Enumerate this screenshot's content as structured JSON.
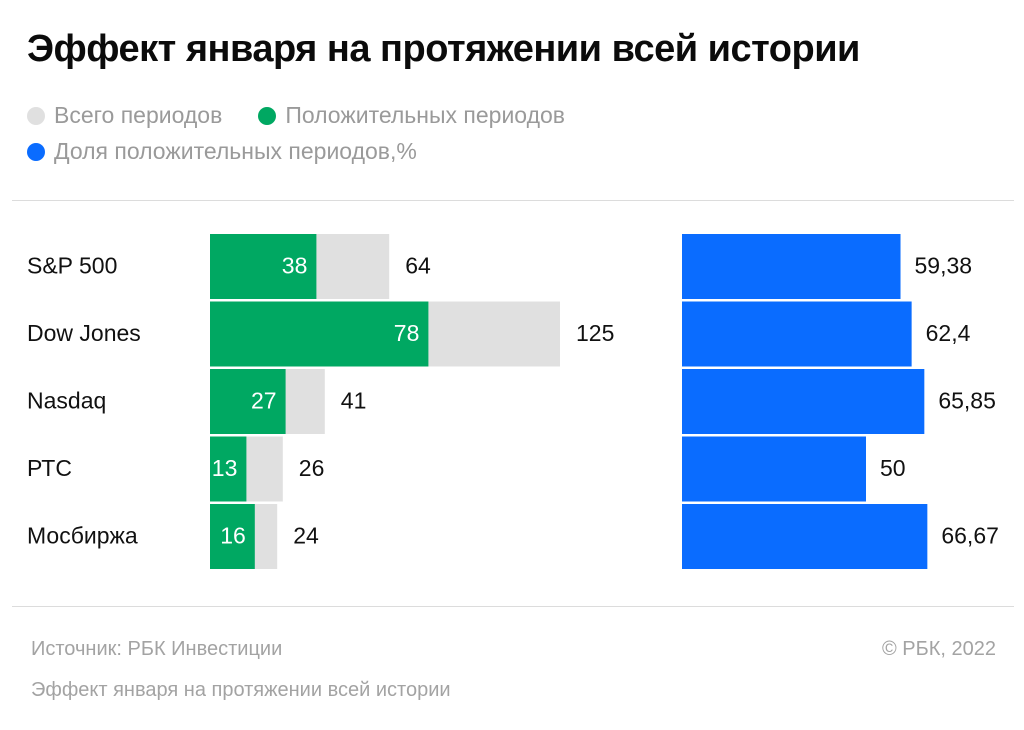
{
  "title": "Эффект января на протяжении всей истории",
  "legend": [
    {
      "label": "Всего периодов",
      "color": "#e0e0e0"
    },
    {
      "label": "Положительных периодов",
      "color": "#00a862"
    },
    {
      "label": "Доля положительных периодов,%",
      "color": "#0a6cff"
    }
  ],
  "chart_data": {
    "type": "bar",
    "orientation": "horizontal",
    "categories": [
      "S&P 500",
      "Dow Jones",
      "Nasdaq",
      "РТС",
      "Мосбиржа"
    ],
    "series": [
      {
        "name": "Всего периодов",
        "values": [
          64,
          125,
          41,
          26,
          24
        ],
        "labels": [
          "64",
          "125",
          "41",
          "26",
          "24"
        ],
        "color": "#e0e0e0"
      },
      {
        "name": "Положительных периодов",
        "values": [
          38,
          78,
          27,
          13,
          16
        ],
        "labels": [
          "38",
          "78",
          "27",
          "13",
          "16"
        ],
        "color": "#00a862"
      },
      {
        "name": "Доля положительных периодов,%",
        "values": [
          59.38,
          62.4,
          65.85,
          50,
          66.67
        ],
        "labels": [
          "59,38",
          "62,4",
          "65,85",
          "50",
          "66,67"
        ],
        "color": "#0a6cff"
      }
    ],
    "legend_position": "top-left",
    "grid": false
  },
  "footer": {
    "source": "Источник:  РБК Инвестиции",
    "copyright": "©  РБК, 2022",
    "caption": "Эффект января на протяжении всей истории"
  }
}
